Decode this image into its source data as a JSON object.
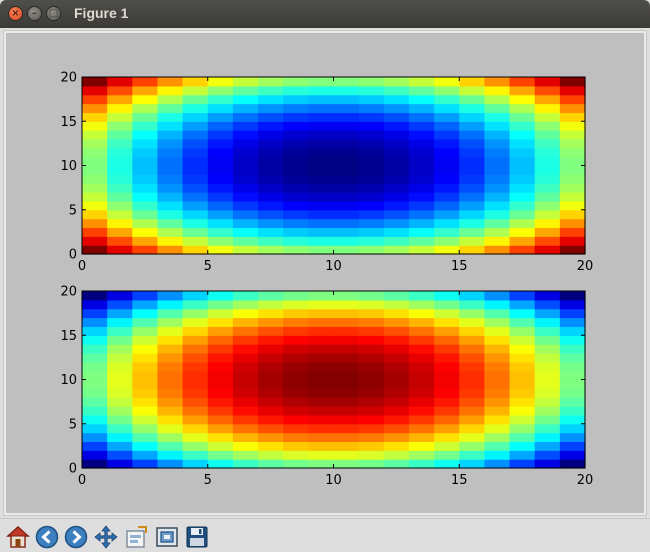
{
  "window": {
    "title": "Figure 1",
    "close_glyph": "×",
    "min_glyph": "–",
    "max_glyph": "□"
  },
  "toolbar": {
    "tools": [
      {
        "name": "home-icon"
      },
      {
        "name": "back-icon"
      },
      {
        "name": "forward-icon"
      },
      {
        "name": "pan-icon"
      },
      {
        "name": "subplots-icon"
      },
      {
        "name": "zoom-icon"
      },
      {
        "name": "save-icon"
      }
    ]
  },
  "chart_data": [
    {
      "type": "heatmap",
      "colormap": "jet",
      "formula": "normalized (x-10)^2 + (y-10)^2",
      "grid_size": 20,
      "xlim": [
        0,
        20
      ],
      "ylim": [
        0,
        20
      ],
      "xticks": [
        0,
        5,
        10,
        15,
        20
      ],
      "yticks": [
        0,
        5,
        10,
        15,
        20
      ],
      "xtick_labels": [
        "0",
        "5",
        "10",
        "15",
        "20"
      ],
      "ytick_labels": [
        "0",
        "5",
        "10",
        "15",
        "20"
      ],
      "value_range": [
        0,
        1
      ],
      "grid": false
    },
    {
      "type": "heatmap",
      "colormap": "jet",
      "formula": "1 - normalized (x-10)^2 + (y-10)^2",
      "grid_size": 20,
      "xlim": [
        0,
        20
      ],
      "ylim": [
        0,
        20
      ],
      "xticks": [
        0,
        5,
        10,
        15,
        20
      ],
      "yticks": [
        0,
        5,
        10,
        15,
        20
      ],
      "xtick_labels": [
        "0",
        "5",
        "10",
        "15",
        "20"
      ],
      "ytick_labels": [
        "0",
        "5",
        "10",
        "15",
        "20"
      ],
      "value_range": [
        0,
        1
      ],
      "grid": false
    }
  ]
}
